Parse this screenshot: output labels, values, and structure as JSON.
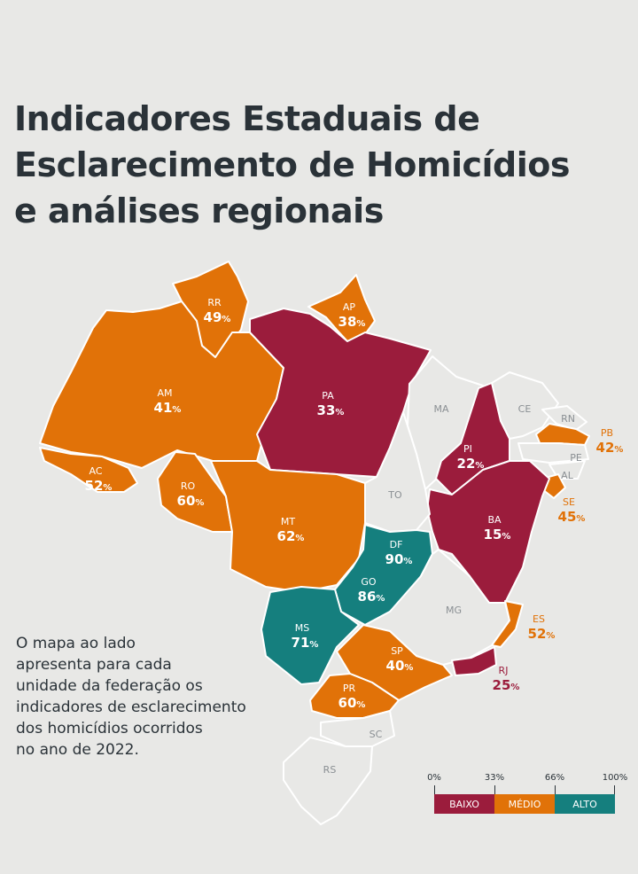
{
  "title_lines": [
    "Indicadores Estaduais de",
    "Esclarecimento de Homicídios",
    "e análises regionais"
  ],
  "description_lines": [
    "O mapa ao lado",
    "apresenta para cada",
    "unidade da federação os",
    "indicadores de esclarecimento",
    "dos homicídios ocorridos",
    "no ano de 2022."
  ],
  "colors": {
    "baixo": "#9b1c3c",
    "medio": "#e17208",
    "alto": "#157f7e",
    "sem_dado": "#e8e8e6",
    "text": "#2a3238"
  },
  "states": {
    "RR": {
      "abbr": "RR",
      "value": "49",
      "level": "medio"
    },
    "AP": {
      "abbr": "AP",
      "value": "38",
      "level": "medio"
    },
    "AM": {
      "abbr": "AM",
      "value": "41",
      "level": "medio"
    },
    "PA": {
      "abbr": "PA",
      "value": "33",
      "level": "baixo"
    },
    "MA": {
      "abbr": "MA",
      "value": "",
      "level": "sem_dado"
    },
    "CE": {
      "abbr": "CE",
      "value": "",
      "level": "sem_dado"
    },
    "RN": {
      "abbr": "RN",
      "value": "",
      "level": "sem_dado"
    },
    "PB": {
      "abbr": "PB",
      "value": "42",
      "level": "medio"
    },
    "PE": {
      "abbr": "PE",
      "value": "",
      "level": "sem_dado"
    },
    "AL": {
      "abbr": "AL",
      "value": "",
      "level": "sem_dado"
    },
    "SE": {
      "abbr": "SE",
      "value": "45",
      "level": "medio"
    },
    "PI": {
      "abbr": "PI",
      "value": "22",
      "level": "baixo"
    },
    "BA": {
      "abbr": "BA",
      "value": "15",
      "level": "baixo"
    },
    "AC": {
      "abbr": "AC",
      "value": "52",
      "level": "medio"
    },
    "RO": {
      "abbr": "RO",
      "value": "60",
      "level": "medio"
    },
    "MT": {
      "abbr": "MT",
      "value": "62",
      "level": "medio"
    },
    "TO": {
      "abbr": "TO",
      "value": "",
      "level": "sem_dado"
    },
    "DF": {
      "abbr": "DF",
      "value": "90",
      "level": "alto"
    },
    "GO": {
      "abbr": "GO",
      "value": "86",
      "level": "alto"
    },
    "MG": {
      "abbr": "MG",
      "value": "",
      "level": "sem_dado"
    },
    "ES": {
      "abbr": "ES",
      "value": "52",
      "level": "medio"
    },
    "MS": {
      "abbr": "MS",
      "value": "71",
      "level": "alto"
    },
    "SP": {
      "abbr": "SP",
      "value": "40",
      "level": "medio"
    },
    "RJ": {
      "abbr": "RJ",
      "value": "25",
      "level": "baixo"
    },
    "PR": {
      "abbr": "PR",
      "value": "60",
      "level": "medio"
    },
    "SC": {
      "abbr": "SC",
      "value": "",
      "level": "sem_dado"
    },
    "RS": {
      "abbr": "RS",
      "value": "",
      "level": "sem_dado"
    }
  },
  "percent_symbol": "%",
  "legend": {
    "ticks": [
      "0%",
      "33%",
      "66%",
      "100%"
    ],
    "segments": [
      {
        "label": "BAIXO",
        "level": "baixo"
      },
      {
        "label": "MÉDIO",
        "level": "medio"
      },
      {
        "label": "ALTO",
        "level": "alto"
      }
    ]
  }
}
